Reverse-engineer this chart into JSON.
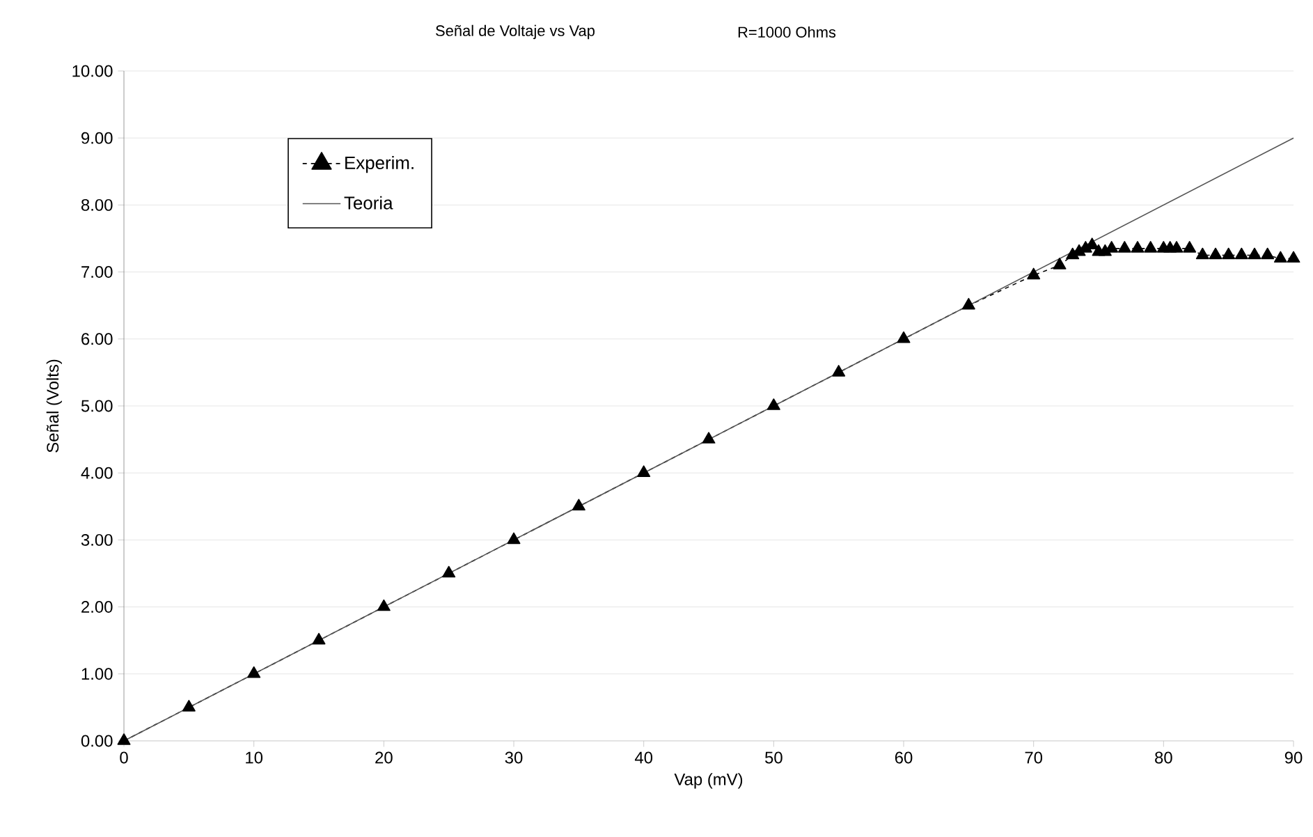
{
  "chart_data": {
    "type": "line",
    "title": "Señal de Voltaje vs Vap",
    "subtitle": "R=1000 Ohms",
    "xlabel": "Vap (mV)",
    "ylabel": "Señal (Volts)",
    "xlim": [
      0,
      90
    ],
    "xticks": [
      0,
      10,
      20,
      30,
      40,
      50,
      60,
      70,
      80,
      90
    ],
    "ylim": [
      0,
      10
    ],
    "yticks": [
      {
        "value": 0,
        "label": "0.00"
      },
      {
        "value": 1,
        "label": "1.00"
      },
      {
        "value": 2,
        "label": "2.00"
      },
      {
        "value": 3,
        "label": "3.00"
      },
      {
        "value": 4,
        "label": "4.00"
      },
      {
        "value": 5,
        "label": "5.00"
      },
      {
        "value": 6,
        "label": "6.00"
      },
      {
        "value": 7,
        "label": "7.00"
      },
      {
        "value": 8,
        "label": "8.00"
      },
      {
        "value": 9,
        "label": "9.00"
      },
      {
        "value": 10,
        "label": "10.00"
      }
    ],
    "grid": "y",
    "legend": "top left",
    "series": [
      {
        "name": "Experim.",
        "color": "#000000",
        "marker": "triangle",
        "line_style": "dashed",
        "x": [
          0,
          5,
          10,
          15,
          20,
          25,
          30,
          35,
          40,
          45,
          50,
          55,
          60,
          65,
          70,
          72,
          73,
          73.5,
          74,
          74.5,
          75,
          75.5,
          76,
          77,
          78,
          79,
          80,
          80.5,
          81,
          82,
          83,
          84,
          85,
          86,
          87,
          88,
          89,
          90
        ],
        "values": [
          0,
          0.5,
          1.0,
          1.5,
          2.0,
          2.5,
          3.0,
          3.5,
          4.0,
          4.5,
          5.0,
          5.5,
          6.0,
          6.5,
          6.95,
          7.1,
          7.25,
          7.3,
          7.35,
          7.4,
          7.3,
          7.3,
          7.35,
          7.35,
          7.35,
          7.35,
          7.35,
          7.35,
          7.35,
          7.35,
          7.25,
          7.25,
          7.25,
          7.25,
          7.25,
          7.25,
          7.2,
          7.2
        ]
      },
      {
        "name": "Teoria",
        "color": "#555555",
        "marker": "none",
        "line_style": "solid",
        "x": [
          0,
          90
        ],
        "values": [
          0,
          9
        ]
      }
    ]
  }
}
